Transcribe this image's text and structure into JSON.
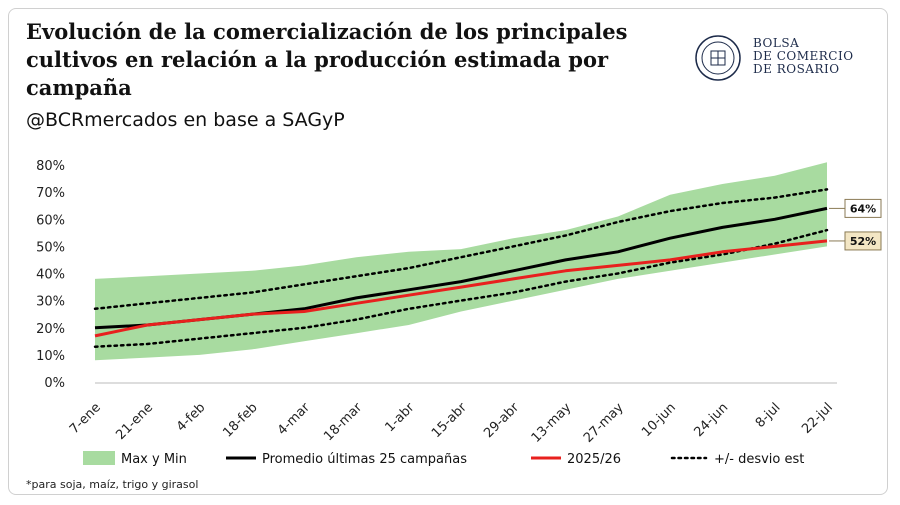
{
  "header": {
    "title_lines": [
      "Evolución de la comercialización de los principales",
      "cultivos en relación a la producción estimada por",
      "campaña"
    ],
    "subtitle": "@BCRmercados en base a SAGyP"
  },
  "logo": {
    "lines": [
      "BOLSA",
      "DE COMERCIO",
      "DE ROSARIO"
    ],
    "color": "#1d2b4a"
  },
  "footnote": "*para soja, maíz, trigo y girasol",
  "chart_data": {
    "type": "line",
    "x_labels": [
      "7-ene",
      "21-ene",
      "4-feb",
      "18-feb",
      "4-mar",
      "18-mar",
      "1-abr",
      "15-abr",
      "29-abr",
      "13-may",
      "27-may",
      "10-jun",
      "24-jun",
      "8-jul",
      "22-jul"
    ],
    "y_ticks": [
      "0%",
      "10%",
      "20%",
      "30%",
      "40%",
      "50%",
      "60%",
      "70%",
      "80%"
    ],
    "ylim": [
      0,
      80
    ],
    "grid": false,
    "legend_position": "bottom",
    "colors": {
      "band": "#a8dba0",
      "average": "#000000",
      "current": "#e8201e",
      "stddev": "#000000",
      "label_box": "#f3e6c4"
    },
    "series": [
      {
        "name": "Max y Min",
        "kind": "band",
        "upper": [
          38,
          39,
          40,
          41,
          43,
          46,
          48,
          49,
          53,
          56,
          61,
          69,
          73,
          76,
          81
        ],
        "lower": [
          8,
          9,
          10,
          12,
          15,
          18,
          21,
          26,
          30,
          34,
          38,
          41,
          44,
          47,
          50
        ]
      },
      {
        "name": "Promedio últimas 25 campañas",
        "kind": "line",
        "values": [
          20,
          21,
          23,
          25,
          27,
          31,
          34,
          37,
          41,
          45,
          48,
          53,
          57,
          60,
          64
        ]
      },
      {
        "name": "2025/26",
        "kind": "line",
        "values": [
          17,
          21,
          23,
          25,
          26,
          29,
          32,
          35,
          38,
          41,
          43,
          45,
          48,
          50,
          52
        ]
      },
      {
        "name": "+/- desvio est",
        "kind": "dotted-pair",
        "upper": [
          27,
          29,
          31,
          33,
          36,
          39,
          42,
          46,
          50,
          54,
          59,
          63,
          66,
          68,
          71
        ],
        "lower": [
          13,
          14,
          16,
          18,
          20,
          23,
          27,
          30,
          33,
          37,
          40,
          44,
          47,
          51,
          56
        ]
      }
    ],
    "end_labels": [
      "64%",
      "52%"
    ]
  }
}
